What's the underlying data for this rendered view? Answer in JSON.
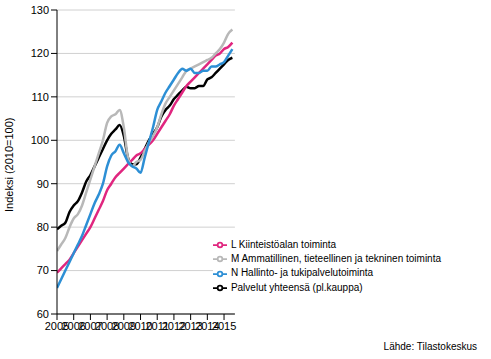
{
  "chart_data": {
    "type": "line",
    "y_label": "Indeksi (2010=100)",
    "source": "Lähde: Tilastokeskus",
    "x": [
      2005,
      2005.25,
      2005.5,
      2005.75,
      2006,
      2006.25,
      2006.5,
      2006.75,
      2007,
      2007.25,
      2007.5,
      2007.75,
      2008,
      2008.25,
      2008.5,
      2008.75,
      2009,
      2009.25,
      2009.5,
      2009.75,
      2010,
      2010.25,
      2010.5,
      2010.75,
      2011,
      2011.25,
      2011.5,
      2011.75,
      2012,
      2012.25,
      2012.5,
      2012.75,
      2013,
      2013.25,
      2013.5,
      2013.75,
      2014,
      2014.25,
      2014.5,
      2014.75,
      2015,
      2015.25,
      2015.5
    ],
    "series": [
      {
        "name": "Palvelut yhteensä  (pl.kauppa)",
        "color": "#000000",
        "values": [
          79.5,
          80.3,
          81,
          83.5,
          85,
          86,
          88,
          90.5,
          92,
          94,
          96,
          98,
          100,
          101.5,
          102.5,
          103.5,
          101,
          96,
          94.5,
          94.5,
          96,
          98,
          100,
          101.5,
          103,
          105.5,
          107,
          108,
          109.5,
          110.5,
          111.5,
          112.3,
          112,
          112,
          112.5,
          112.5,
          114,
          114.5,
          115.5,
          116.5,
          117.5,
          118.5,
          119
        ]
      },
      {
        "name": "L Kiinteistöalan toiminta",
        "color": "#e0267f",
        "values": [
          69.5,
          70.5,
          71.5,
          72.5,
          74,
          75.5,
          77,
          78.5,
          80,
          82,
          84,
          86,
          88.5,
          90,
          91.5,
          92.5,
          93.5,
          94.5,
          95.5,
          96.5,
          97,
          98,
          99,
          100,
          101.5,
          103,
          104.5,
          106,
          108,
          109.5,
          111,
          112.5,
          113.5,
          114.5,
          115.5,
          116.5,
          117.5,
          118.5,
          119.5,
          120,
          121,
          121.5,
          122.5
        ]
      },
      {
        "name": "M Ammatillinen, tieteellinen ja tekninen toiminta",
        "color": "#b8b8b8",
        "values": [
          74.5,
          76,
          77.5,
          80,
          82,
          83,
          85,
          88,
          91,
          94,
          97,
          100,
          104,
          105.5,
          106,
          107,
          103,
          96,
          94,
          95,
          95.5,
          97.5,
          99.5,
          101,
          103,
          106,
          108.5,
          110,
          111.5,
          113,
          114.5,
          116,
          116.5,
          117,
          117.5,
          118,
          118.5,
          119,
          120,
          121,
          122.5,
          124.5,
          125.5
        ]
      },
      {
        "name": "N Hallinto- ja tukipalvelutoiminta",
        "color": "#2d8fd5",
        "values": [
          66,
          68,
          70,
          72,
          74,
          76,
          78,
          80.5,
          83,
          85.5,
          87.5,
          90,
          94,
          96.5,
          97.5,
          99,
          97,
          95,
          94,
          93.5,
          92.5,
          96,
          99.5,
          103,
          107,
          109,
          111,
          112.5,
          114,
          115.5,
          116.5,
          116,
          116.5,
          115.5,
          115.5,
          116,
          116,
          117,
          117,
          117.5,
          118,
          119.5,
          121
        ]
      }
    ],
    "xlim": [
      2005,
      2015.65
    ],
    "xticks": [
      2005,
      2006,
      2007,
      2008,
      2009,
      2010,
      2011,
      2012,
      2013,
      2014,
      2015
    ],
    "ylim": [
      60,
      130
    ],
    "yticks": [
      60,
      70,
      80,
      90,
      100,
      110,
      120,
      130
    ],
    "grid": true,
    "legend": "lower right"
  }
}
